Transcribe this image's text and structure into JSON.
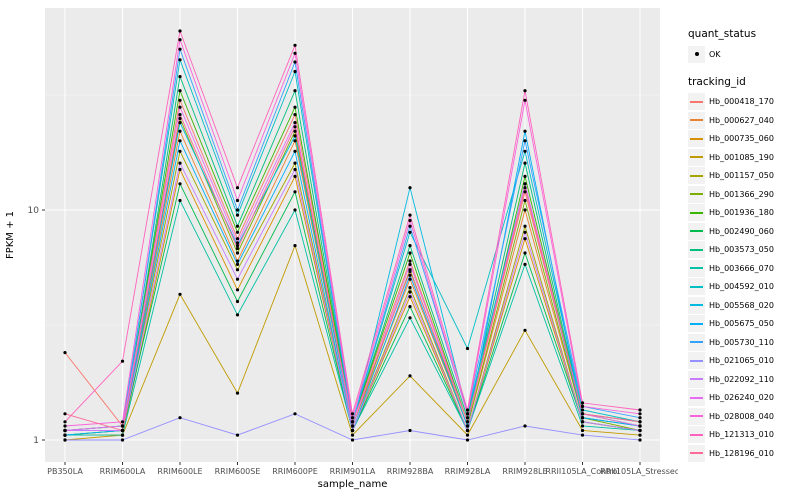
{
  "colors": {
    "panel_bg": "#EBEBEB",
    "grid_major": "#FFFFFF",
    "grid_minor": "#F5F5F5",
    "point": "#000000",
    "tick_text": "#4D4D4D",
    "axis_title": "#000000",
    "legend_key_bg": "#F2F2F2"
  },
  "chart_data": {
    "type": "line",
    "title": "",
    "xlabel": "sample_name",
    "ylabel": "FPKM + 1",
    "y_scale": "log10",
    "y_ticks": [
      1,
      10
    ],
    "ylim": [
      0.95,
      75
    ],
    "grid": true,
    "legend_position": "right",
    "categories": [
      "PB350LA",
      "RRIM600LA",
      "RRIM600LE",
      "RRIM600SE",
      "RRIM600PE",
      "RRIM901LA",
      "RRIM928BA",
      "RRIM928LA",
      "RRIM928LE",
      "RRII105LA_Control",
      "RRII105LA_Stressed"
    ],
    "series": [
      {
        "name": "Hb_000418_170",
        "color": "#F8766D",
        "values": [
          2.4,
          1.15,
          30,
          7.5,
          26,
          1.2,
          6.0,
          1.2,
          12,
          1.3,
          1.2
        ]
      },
      {
        "name": "Hb_000627_040",
        "color": "#EA8331",
        "values": [
          1.1,
          1.1,
          22,
          6.0,
          20,
          1.15,
          5.0,
          1.15,
          10,
          1.25,
          1.15
        ]
      },
      {
        "name": "Hb_000735_060",
        "color": "#D89000",
        "values": [
          1.05,
          1.05,
          15,
          4.5,
          14,
          1.1,
          4.2,
          1.1,
          7.5,
          1.2,
          1.1
        ]
      },
      {
        "name": "Hb_001085_190",
        "color": "#C09B00",
        "values": [
          1.0,
          1.05,
          4.3,
          1.6,
          7.0,
          1.05,
          1.9,
          1.05,
          3.0,
          1.1,
          1.05
        ]
      },
      {
        "name": "Hb_001157_050",
        "color": "#A3A500",
        "values": [
          1.1,
          1.1,
          18,
          5.5,
          16,
          1.1,
          4.6,
          1.1,
          8.5,
          1.2,
          1.1
        ]
      },
      {
        "name": "Hb_001366_290",
        "color": "#7CAE00",
        "values": [
          1.05,
          1.1,
          25,
          6.5,
          22,
          1.15,
          5.5,
          1.15,
          11,
          1.25,
          1.1
        ]
      },
      {
        "name": "Hb_001936_180",
        "color": "#39B600",
        "values": [
          1.1,
          1.15,
          33,
          8.0,
          28,
          1.2,
          6.5,
          1.2,
          14,
          1.3,
          1.15
        ]
      },
      {
        "name": "Hb_002490_060",
        "color": "#00BB4E",
        "values": [
          1.05,
          1.1,
          13,
          4.0,
          12,
          1.1,
          3.8,
          1.1,
          6.5,
          1.2,
          1.1
        ]
      },
      {
        "name": "Hb_003573_050",
        "color": "#00BF7D",
        "values": [
          1.1,
          1.1,
          38,
          8.5,
          33,
          1.2,
          7.0,
          1.25,
          16,
          1.3,
          1.2
        ]
      },
      {
        "name": "Hb_003666_070",
        "color": "#00C1A3",
        "values": [
          1.05,
          1.05,
          11,
          3.5,
          10,
          1.1,
          3.4,
          1.1,
          5.8,
          1.15,
          1.1
        ]
      },
      {
        "name": "Hb_004592_010",
        "color": "#00BFC4",
        "values": [
          1.1,
          1.15,
          45,
          9.5,
          40,
          1.2,
          8.0,
          2.5,
          18,
          1.35,
          1.2
        ]
      },
      {
        "name": "Hb_005568_020",
        "color": "#00BAE0",
        "values": [
          1.1,
          1.1,
          24,
          7.0,
          21,
          1.15,
          12.5,
          1.3,
          13,
          1.25,
          1.15
        ]
      },
      {
        "name": "Hb_005675_050",
        "color": "#00B0F6",
        "values": [
          1.05,
          1.1,
          20,
          5.8,
          18,
          1.1,
          5.2,
          1.15,
          22,
          1.25,
          1.15
        ]
      },
      {
        "name": "Hb_005730_110",
        "color": "#35A2FF",
        "values": [
          1.1,
          1.1,
          50,
          10,
          44,
          1.2,
          8.5,
          1.3,
          20,
          1.4,
          1.25
        ]
      },
      {
        "name": "Hb_021065_010",
        "color": "#9590FF",
        "values": [
          1.0,
          1.0,
          1.25,
          1.05,
          1.3,
          1.0,
          1.1,
          1.0,
          1.15,
          1.05,
          1.0
        ]
      },
      {
        "name": "Hb_022092_110",
        "color": "#C77CFF",
        "values": [
          1.1,
          1.1,
          16,
          5.0,
          15,
          1.1,
          4.4,
          1.1,
          8.0,
          1.2,
          1.1
        ]
      },
      {
        "name": "Hb_026240_020",
        "color": "#E76BF3",
        "values": [
          1.1,
          1.15,
          28,
          7.2,
          24,
          1.15,
          5.8,
          1.2,
          13,
          1.3,
          1.15
        ]
      },
      {
        "name": "Hb_028008_040",
        "color": "#FA62DB",
        "values": [
          1.15,
          1.2,
          55,
          11,
          48,
          1.25,
          9.0,
          1.3,
          30,
          1.4,
          1.3
        ]
      },
      {
        "name": "Hb_121313_010",
        "color": "#FF62BC",
        "values": [
          1.2,
          2.2,
          60,
          12.5,
          52,
          1.3,
          9.5,
          1.35,
          33,
          1.45,
          1.35
        ]
      },
      {
        "name": "Hb_128196_010",
        "color": "#FF6A98",
        "values": [
          1.3,
          1.1,
          26,
          6.8,
          23,
          1.2,
          5.4,
          1.2,
          12.5,
          1.3,
          1.2
        ]
      }
    ],
    "legend": {
      "quant_status_title": "quant_status",
      "quant_status_items": [
        {
          "label": "OK",
          "shape": "point",
          "color": "#000000"
        }
      ],
      "tracking_id_title": "tracking_id"
    }
  }
}
